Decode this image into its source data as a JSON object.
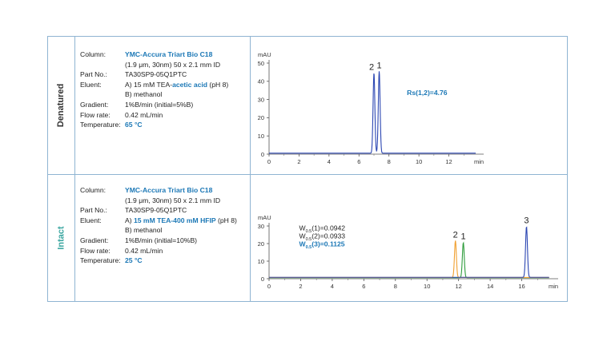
{
  "colors": {
    "frame_border": "#8fb4d2",
    "denatured_label": "#333333",
    "intact_label": "#3aa6a0",
    "accent_blue": "#1c78b6",
    "trace_blue": "#2b46b2",
    "trace_green": "#2e9c3c",
    "trace_orange": "#f0a030"
  },
  "rows": [
    {
      "label": "Denatured",
      "conditions": [
        {
          "label": "Column:",
          "value": "YMC-Accura Triart Bio C18",
          "highlight": true
        },
        {
          "label": "",
          "value": "(1.9 μm, 30nm) 50 x 2.1 mm ID"
        },
        {
          "label": "Part No.:",
          "value": "TA30SP9-05Q1PTC"
        },
        {
          "label": "Eluent:",
          "value_prefix": "A) 15 mM TEA-",
          "value_highlight": "acetic acid",
          "value_suffix": " (pH 8)"
        },
        {
          "label": "",
          "value": "B) methanol"
        },
        {
          "label": "Gradient:",
          "value": "1%B/min (initial=5%B)"
        },
        {
          "label": "Flow rate:",
          "value": "0.42 mL/min"
        },
        {
          "label": "Temperature:",
          "value": "65 °C",
          "highlight": true
        }
      ]
    },
    {
      "label": "Intact",
      "conditions": [
        {
          "label": "Column:",
          "value": "YMC-Accura Triart Bio C18",
          "highlight": true
        },
        {
          "label": "",
          "value": "(1.9 μm, 30nm) 50 x 2.1 mm ID"
        },
        {
          "label": "Part No.:",
          "value": "TA30SP9-05Q1PTC"
        },
        {
          "label": "Eluent:",
          "value_prefix": "A) ",
          "value_highlight": "15 mM TEA-400 mM HFIP",
          "value_suffix": " (pH 8)"
        },
        {
          "label": "",
          "value": "B) methanol"
        },
        {
          "label": "Gradient:",
          "value": "1%B/min (initial=10%B)"
        },
        {
          "label": "Flow rate:",
          "value": "0.42 mL/min"
        },
        {
          "label": "Temperature:",
          "value": "25 °C",
          "highlight": true
        }
      ]
    }
  ],
  "chart_data": [
    {
      "type": "line",
      "title": "",
      "ylabel": "mAU",
      "xlabel": "min",
      "xlim": [
        0,
        14
      ],
      "ylim": [
        0,
        50
      ],
      "xticks": [
        0,
        2,
        4,
        6,
        8,
        10,
        12
      ],
      "yticks": [
        0,
        10,
        20,
        30,
        40,
        50
      ],
      "grid": false,
      "series": [
        {
          "color": "#2b46b2",
          "baseline": 0.5,
          "peaks": [
            {
              "label": "2",
              "x": 7.0,
              "height": 44
            },
            {
              "label": "1",
              "x": 7.35,
              "height": 45
            }
          ]
        }
      ],
      "annotations": [
        {
          "text": "Rs(1,2)=4.76",
          "x": 9.2,
          "y": 32.5,
          "color": "#1c78b6"
        }
      ]
    },
    {
      "type": "line",
      "title": "",
      "ylabel": "mAU",
      "xlabel": "min",
      "xlim": [
        0,
        18
      ],
      "ylim": [
        0,
        30
      ],
      "xticks": [
        0,
        2,
        4,
        6,
        8,
        10,
        12,
        14,
        16
      ],
      "yticks": [
        0,
        10,
        20,
        30
      ],
      "grid": false,
      "series": [
        {
          "color": "#2e9c3c",
          "baseline": 0.6,
          "peaks": [
            {
              "label": "1",
              "x": 12.3,
              "height": 20
            }
          ]
        },
        {
          "color": "#f0a030",
          "baseline": 0.7,
          "peaks": [
            {
              "label": "2",
              "x": 11.8,
              "height": 21
            }
          ]
        },
        {
          "color": "#2b46b2",
          "baseline": 0.8,
          "peaks": [
            {
              "label": "3",
              "x": 16.3,
              "height": 29
            }
          ]
        }
      ],
      "annotations": [
        {
          "text_main": "W",
          "text_sub": "0.5",
          "text_rest": "(1)=0.0942",
          "x": 1.9,
          "y": 27.5,
          "color": "#222222"
        },
        {
          "text_main": "W",
          "text_sub": "0.5",
          "text_rest": "(2)=0.0933",
          "x": 1.9,
          "y": 23.0,
          "color": "#222222"
        },
        {
          "text_main": "W",
          "text_sub": "0.5",
          "text_rest": "(3)=0.1125",
          "x": 1.9,
          "y": 18.5,
          "color": "#1c78b6"
        }
      ]
    }
  ]
}
